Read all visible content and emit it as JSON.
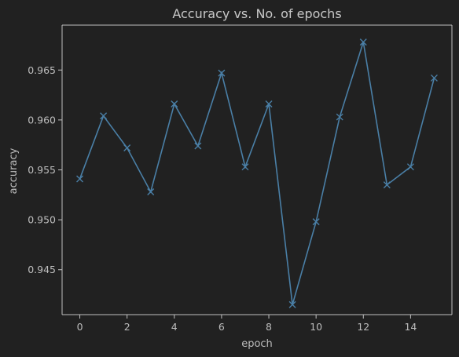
{
  "chart_data": {
    "type": "line",
    "title": "Accuracy vs. No. of epochs",
    "xlabel": "epoch",
    "ylabel": "accuracy",
    "xlim": [
      -0.75,
      15.75
    ],
    "ylim": [
      0.9405,
      0.9695
    ],
    "xticks": [
      "0",
      "2",
      "4",
      "6",
      "8",
      "10",
      "12",
      "14"
    ],
    "yticks": [
      "0.945",
      "0.950",
      "0.955",
      "0.960",
      "0.965"
    ],
    "grid": false,
    "marker": "x",
    "color": "#4a7fa6",
    "series": [
      {
        "x": [
          0,
          1,
          2,
          3,
          4,
          5,
          6,
          7,
          8,
          9,
          10,
          11,
          12,
          13,
          14,
          15
        ],
        "values": [
          0.9541,
          0.9604,
          0.9572,
          0.9528,
          0.9616,
          0.9574,
          0.9647,
          0.9553,
          0.9616,
          0.9415,
          0.9498,
          0.9603,
          0.9678,
          0.9535,
          0.9553,
          0.9642
        ]
      }
    ]
  }
}
